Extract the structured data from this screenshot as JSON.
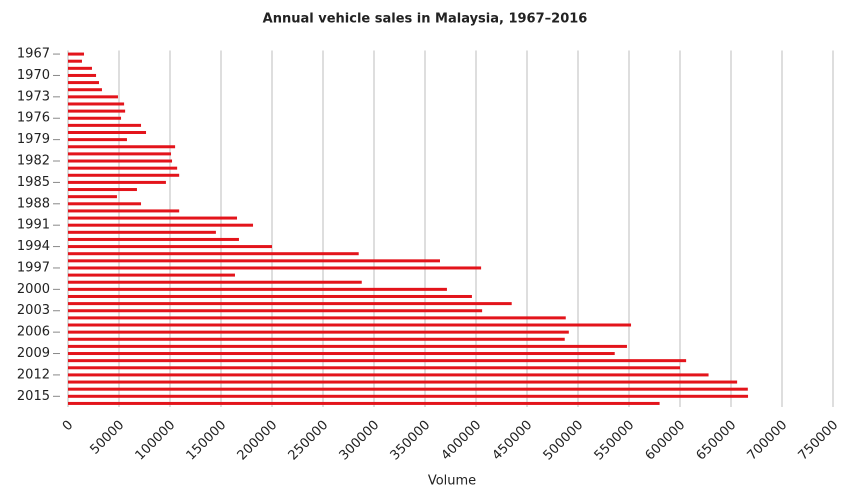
{
  "chart_data": {
    "type": "bar",
    "orientation": "horizontal",
    "title": "Annual vehicle sales in Malaysia, 1967–2016",
    "x_label": "Volume",
    "categories": [
      "1967",
      null,
      null,
      "1970",
      null,
      null,
      "1973",
      null,
      null,
      "1976",
      null,
      null,
      "1979",
      null,
      null,
      "1982",
      null,
      null,
      "1985",
      null,
      null,
      "1988",
      null,
      null,
      "1991",
      null,
      null,
      "1994",
      null,
      null,
      "1997",
      null,
      null,
      "2000",
      null,
      null,
      "2003",
      null,
      null,
      "2006",
      null,
      null,
      "2009",
      null,
      null,
      "2012",
      null,
      null,
      "2015",
      null
    ],
    "values": [
      15700,
      13700,
      23500,
      27500,
      30400,
      33300,
      49000,
      55000,
      56000,
      52000,
      71600,
      76500,
      57800,
      105000,
      101000,
      102000,
      107000,
      109000,
      96000,
      67600,
      48000,
      71600,
      109000,
      165700,
      181400,
      145000,
      167600,
      200000,
      285000,
      364700,
      405000,
      163700,
      288000,
      371500,
      396000,
      435000,
      406000,
      488000,
      552000,
      491000,
      487000,
      548000,
      536000,
      606000,
      600000,
      628000,
      656000,
      666500,
      666700,
      580000
    ],
    "color": "#e3141b",
    "xlim": [
      0,
      750000
    ],
    "xticks": [
      0,
      50000,
      100000,
      150000,
      200000,
      250000,
      300000,
      350000,
      400000,
      450000,
      500000,
      550000,
      600000,
      650000,
      700000,
      750000
    ],
    "grid": true
  }
}
